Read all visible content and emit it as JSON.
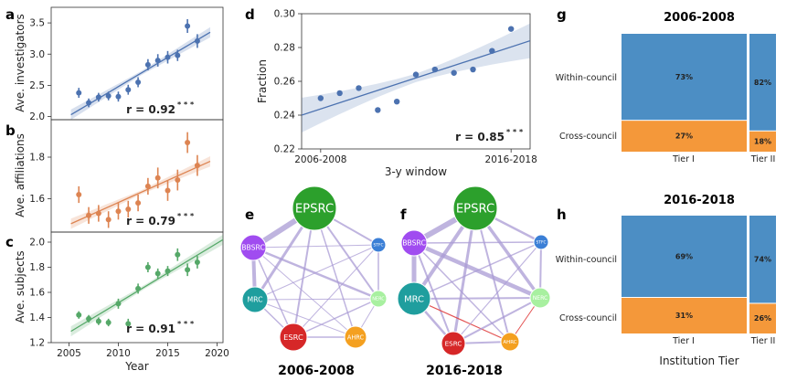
{
  "chart_data": [
    {
      "id": "a",
      "panel_label": "a",
      "type": "scatter",
      "ylabel": "Ave. investigators",
      "color": "#4c72b0",
      "ylim": [
        1.95,
        3.75
      ],
      "yticks": [
        "2.0",
        "2.5",
        "3.0",
        "3.5"
      ],
      "ytick_values": [
        2.0,
        2.5,
        3.0,
        3.5
      ],
      "x": [
        2006,
        2007,
        2008,
        2009,
        2010,
        2011,
        2012,
        2013,
        2014,
        2015,
        2016,
        2017,
        2018
      ],
      "y": [
        2.38,
        2.22,
        2.31,
        2.33,
        2.32,
        2.43,
        2.55,
        2.83,
        2.9,
        2.95,
        2.98,
        3.45,
        3.21
      ],
      "err": [
        0.08,
        0.07,
        0.07,
        0.07,
        0.08,
        0.08,
        0.08,
        0.09,
        0.1,
        0.1,
        0.09,
        0.11,
        0.11
      ],
      "fit": [
        [
          2005.2,
          2.03
        ],
        [
          2019.3,
          3.35
        ]
      ],
      "r_text": "r = 0.92",
      "sig": "* * *"
    },
    {
      "id": "b",
      "panel_label": "b",
      "type": "scatter",
      "ylabel": "Ave. affiliations",
      "color": "#dd8452",
      "ylim": [
        1.44,
        1.98
      ],
      "yticks": [
        "1.6",
        "1.8"
      ],
      "ytick_values": [
        1.6,
        1.8
      ],
      "x": [
        2006,
        2007,
        2008,
        2009,
        2010,
        2011,
        2012,
        2013,
        2014,
        2015,
        2016,
        2017,
        2018
      ],
      "y": [
        1.62,
        1.52,
        1.53,
        1.5,
        1.54,
        1.55,
        1.58,
        1.66,
        1.7,
        1.64,
        1.69,
        1.87,
        1.76
      ],
      "err": [
        0.04,
        0.04,
        0.04,
        0.04,
        0.04,
        0.04,
        0.04,
        0.04,
        0.05,
        0.05,
        0.05,
        0.05,
        0.05
      ],
      "fit": [
        [
          2005.2,
          1.48
        ],
        [
          2019.3,
          1.78
        ]
      ],
      "r_text": "r = 0.79",
      "sig": "* * *"
    },
    {
      "id": "c",
      "panel_label": "c",
      "type": "scatter",
      "ylabel": "Ave. subjects",
      "color": "#55a868",
      "ylim": [
        1.2,
        2.08
      ],
      "yticks": [
        "1.2",
        "1.4",
        "1.6",
        "1.8",
        "2.0"
      ],
      "ytick_values": [
        1.2,
        1.4,
        1.6,
        1.8,
        2.0
      ],
      "xlim": [
        2003.2,
        2020.6
      ],
      "xticks": [
        "2005",
        "2010",
        "2015",
        "2020"
      ],
      "xtick_values": [
        2005,
        2010,
        2015,
        2020
      ],
      "xlabel": "Year",
      "x": [
        2006,
        2007,
        2008,
        2009,
        2010,
        2011,
        2012,
        2013,
        2014,
        2015,
        2016,
        2017,
        2018
      ],
      "y": [
        1.42,
        1.39,
        1.37,
        1.36,
        1.51,
        1.35,
        1.63,
        1.8,
        1.75,
        1.77,
        1.9,
        1.78,
        1.84
      ],
      "err": [
        0.03,
        0.03,
        0.03,
        0.03,
        0.04,
        0.04,
        0.04,
        0.04,
        0.04,
        0.04,
        0.05,
        0.05,
        0.05
      ],
      "fit": [
        [
          2005.2,
          1.29
        ],
        [
          2020.6,
          2.02
        ]
      ],
      "r_text": "r = 0.91",
      "sig": "* * *"
    },
    {
      "id": "d",
      "panel_label": "d",
      "type": "scatter",
      "xlabel": "3-y window",
      "ylabel": "Fraction",
      "color": "#4c72b0",
      "ylim": [
        0.22,
        0.3
      ],
      "yticks": [
        "0.22",
        "0.24",
        "0.26",
        "0.28",
        "0.30"
      ],
      "ytick_values": [
        0.22,
        0.24,
        0.26,
        0.28,
        0.3
      ],
      "xticks": [
        "2006-2008",
        "2016-2018"
      ],
      "xtick_values": [
        1,
        11
      ],
      "xlim": [
        0,
        12
      ],
      "x": [
        1,
        2,
        3,
        4,
        5,
        6,
        7,
        8,
        9,
        10,
        11
      ],
      "y": [
        0.25,
        0.253,
        0.256,
        0.243,
        0.248,
        0.264,
        0.267,
        0.265,
        0.267,
        0.278,
        0.291
      ],
      "fit": [
        [
          0,
          0.24
        ],
        [
          12,
          0.284
        ]
      ],
      "r_text": "r = 0.85",
      "sig": "* * *"
    },
    {
      "id": "g",
      "panel_label": "g",
      "type": "mosaic",
      "title": "2006-2008",
      "row_labels": [
        "Within-council",
        "Cross-council"
      ],
      "columns": [
        {
          "label": "Tier I",
          "within": 73,
          "cross": 27,
          "within_text": "73%",
          "cross_text": "27%"
        },
        {
          "label": "Tier II",
          "within": 82,
          "cross": 18,
          "within_text": "82%",
          "cross_text": "18%"
        }
      ],
      "colors": {
        "within": "#4c8ec4",
        "cross": "#f4983a"
      }
    },
    {
      "id": "h",
      "panel_label": "h",
      "type": "mosaic",
      "title": "2016-2018",
      "xlabel": "Institution Tier",
      "row_labels": [
        "Within-council",
        "Cross-council"
      ],
      "columns": [
        {
          "label": "Tier I",
          "within": 69,
          "cross": 31,
          "within_text": "69%",
          "cross_text": "31%"
        },
        {
          "label": "Tier II",
          "within": 74,
          "cross": 26,
          "within_text": "74%",
          "cross_text": "26%"
        }
      ],
      "colors": {
        "within": "#4c8ec4",
        "cross": "#f4983a"
      }
    }
  ],
  "networks": {
    "nodes": [
      {
        "id": "EPSRC",
        "label": "EPSRC",
        "color": "#2ca02c"
      },
      {
        "id": "BBSRC",
        "label": "BBSRC",
        "color": "#a04cf0"
      },
      {
        "id": "STFC",
        "label": "STFC",
        "color": "#3b7fd6"
      },
      {
        "id": "MRC",
        "label": "MRC",
        "color": "#1f9e9e"
      },
      {
        "id": "NERC",
        "label": "NERC",
        "color": "#a8f0a0"
      },
      {
        "id": "ESRC",
        "label": "ESRC",
        "color": "#d62728"
      },
      {
        "id": "AHRC",
        "label": "AHRC",
        "color": "#f4a020"
      }
    ],
    "panels": [
      {
        "panel_label": "e",
        "title": "2006-2008",
        "edges": [
          [
            "EPSRC",
            "BBSRC",
            6
          ],
          [
            "EPSRC",
            "MRC",
            3
          ],
          [
            "EPSRC",
            "STFC",
            2
          ],
          [
            "EPSRC",
            "NERC",
            2
          ],
          [
            "EPSRC",
            "ESRC",
            2
          ],
          [
            "EPSRC",
            "AHRC",
            1.5
          ],
          [
            "BBSRC",
            "MRC",
            4
          ],
          [
            "BBSRC",
            "NERC",
            2.5
          ],
          [
            "BBSRC",
            "ESRC",
            1.5
          ],
          [
            "BBSRC",
            "STFC",
            1
          ],
          [
            "BBSRC",
            "AHRC",
            1
          ],
          [
            "MRC",
            "ESRC",
            1.5
          ],
          [
            "MRC",
            "NERC",
            1
          ],
          [
            "MRC",
            "STFC",
            1
          ],
          [
            "MRC",
            "AHRC",
            1
          ],
          [
            "STFC",
            "NERC",
            1.5
          ],
          [
            "STFC",
            "ESRC",
            1
          ],
          [
            "NERC",
            "ESRC",
            1.5
          ],
          [
            "NERC",
            "AHRC",
            1
          ],
          [
            "ESRC",
            "AHRC",
            1.5
          ]
        ]
      },
      {
        "panel_label": "f",
        "title": "2016-2018",
        "edges": [
          [
            "EPSRC",
            "BBSRC",
            6
          ],
          [
            "EPSRC",
            "MRC",
            4
          ],
          [
            "EPSRC",
            "STFC",
            2.5
          ],
          [
            "EPSRC",
            "NERC",
            3.5
          ],
          [
            "EPSRC",
            "ESRC",
            3
          ],
          [
            "EPSRC",
            "AHRC",
            2
          ],
          [
            "BBSRC",
            "MRC",
            5
          ],
          [
            "BBSRC",
            "NERC",
            4.5
          ],
          [
            "BBSRC",
            "ESRC",
            2
          ],
          [
            "BBSRC",
            "STFC",
            1.5
          ],
          [
            "BBSRC",
            "AHRC",
            1.5
          ],
          [
            "MRC",
            "ESRC",
            2.5
          ],
          [
            "MRC",
            "NERC",
            2
          ],
          [
            "MRC",
            "STFC",
            1.5
          ],
          [
            "MRC",
            "AHRC",
            1.2,
            "#e04040"
          ],
          [
            "STFC",
            "NERC",
            2
          ],
          [
            "STFC",
            "ESRC",
            1.2
          ],
          [
            "NERC",
            "ESRC",
            2
          ],
          [
            "NERC",
            "AHRC",
            1,
            "#e04040"
          ],
          [
            "ESRC",
            "AHRC",
            2
          ]
        ]
      }
    ]
  }
}
